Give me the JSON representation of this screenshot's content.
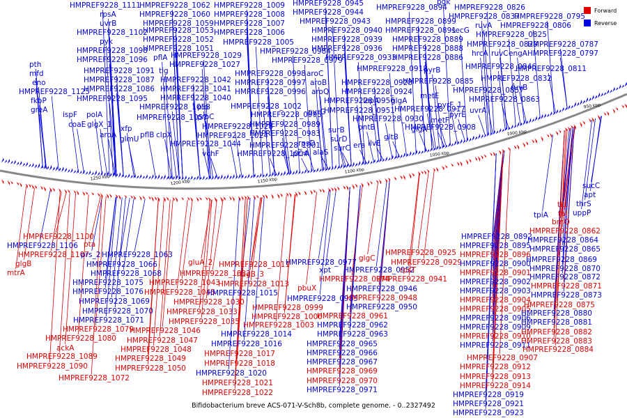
{
  "title": "Bifidobacterium breve ACS-071-V-Sch8b, complete genome. - 0..2327492",
  "legend": {
    "forward_label": "Forward",
    "reverse_label": "Reverse",
    "forward_color": "#e00000",
    "reverse_color": "#0000e0"
  },
  "backbone_ticks": [
    "1250 kbp",
    "1200 kbp",
    "1150 kbp",
    "1100 kbp",
    "1050 kbp",
    "1000 kbp",
    "950 kbp"
  ],
  "top_labels": [
    [
      "HMPREF9228_1111",
      100,
      11
    ],
    [
      "HMPREF9228_1062",
      200,
      11
    ],
    [
      "HMPREF9228_1009",
      307,
      11
    ],
    [
      "HMPREF9228_0945",
      420,
      8
    ],
    [
      "HMPREF9228_0894",
      540,
      14
    ],
    [
      "pgk",
      627,
      6
    ],
    [
      "HMPREF9228_0826",
      652,
      14
    ],
    [
      "rpsA",
      143,
      24
    ],
    [
      "HMPREF9228_1060",
      200,
      24
    ],
    [
      "HMPREF9228_1008",
      307,
      24
    ],
    [
      "HMPREF9228_0944",
      420,
      21
    ],
    [
      "HMPREF9228_0837",
      644,
      27
    ],
    [
      "HMPREF9228_0795",
      738,
      27
    ],
    [
      "uvrB",
      143,
      37
    ],
    [
      "HMPREF9228_1059",
      205,
      37
    ],
    [
      "HMPREF9228_1007",
      307,
      37
    ],
    [
      "HMPREF9228_0943",
      430,
      34
    ],
    [
      "HMPREF9228_0899",
      553,
      34
    ],
    [
      "ruvA",
      682,
      40
    ],
    [
      "HMPREF9228_0806",
      718,
      40
    ],
    [
      "HMPREF9228_1102",
      110,
      50
    ],
    [
      "HMPREF9228_1053",
      205,
      47
    ],
    [
      "HMPREF9228_1006",
      307,
      50
    ],
    [
      "HMPREF9228_0940",
      447,
      47
    ],
    [
      "HMPREF9228_0891",
      553,
      47
    ],
    [
      "secG",
      648,
      47
    ],
    [
      "HMPREF9228_0825",
      683,
      53
    ],
    [
      "pyk",
      143,
      63
    ],
    [
      "HMPREF9228_1052",
      205,
      60
    ],
    [
      "HMPREF9228_1005",
      320,
      64
    ],
    [
      "HMPREF9228_0939",
      447,
      60
    ],
    [
      "HMPREF9228_0889",
      563,
      60
    ],
    [
      "HMPREF9228_0829",
      670,
      67
    ],
    [
      "HMPREF9228_0787",
      757,
      67
    ],
    [
      "HMPREF9228_1098",
      110,
      76
    ],
    [
      "HMPREF9228_1051",
      205,
      73
    ],
    [
      "HMPREF9228_0984",
      373,
      77
    ],
    [
      "HMPREF9228_0936",
      447,
      73
    ],
    [
      "HMPREF9228_0888",
      563,
      73
    ],
    [
      "hrcA",
      677,
      80
    ],
    [
      "ruvC",
      705,
      80
    ],
    [
      "engA",
      730,
      80
    ],
    [
      "HMPREF9228_0797",
      757,
      80
    ],
    [
      "HMPREF9228_1096",
      110,
      89
    ],
    [
      "pflA",
      220,
      86
    ],
    [
      "HMPREF9228_1029",
      245,
      83
    ],
    [
      "HMPREF9228_0979",
      390,
      90
    ],
    [
      "HMPREF9228_0933",
      467,
      86
    ],
    [
      "HMPREF9228_0886",
      563,
      86
    ],
    [
      "pth",
      42,
      96
    ],
    [
      "HMPREF9228_1027",
      243,
      96
    ],
    [
      "HMPREF9228_0918",
      512,
      102
    ],
    [
      "HMPREF9228_0846",
      668,
      99
    ],
    [
      "HMPREF9228_0811",
      740,
      102
    ],
    [
      "mfd",
      42,
      109
    ],
    [
      "HMPREF9228_1091",
      120,
      105
    ],
    [
      "tig",
      228,
      105
    ],
    [
      "HMPREF9228_0998",
      337,
      109
    ],
    [
      "aroC",
      440,
      109
    ],
    [
      "pyrB",
      608,
      104
    ],
    [
      "HMPREF9228_0832",
      690,
      116
    ],
    [
      "eno",
      46,
      122
    ],
    [
      "HMPREF9228_1087",
      120,
      118
    ],
    [
      "HMPREF9228_1042",
      230,
      118
    ],
    [
      "HMPREF9228_0997",
      337,
      122
    ],
    [
      "aroB",
      445,
      122
    ],
    [
      "HMPREF9228_0928",
      490,
      122
    ],
    [
      "HMPREF9228_0885",
      578,
      120
    ],
    [
      "HMPREF9228_1125",
      27,
      135
    ],
    [
      "HMPREF9228_1086",
      120,
      131
    ],
    [
      "HMPREF9228_1041",
      230,
      131
    ],
    [
      "HMPREF9228_0996",
      337,
      135
    ],
    [
      "aroQ",
      447,
      135
    ],
    [
      "HMPREF9228_0924",
      490,
      135
    ],
    [
      "HMPREF9228_0857",
      650,
      133
    ],
    [
      "ruvB",
      733,
      129
    ],
    [
      "fkbP",
      44,
      148
    ],
    [
      "HMPREF9228_1095",
      110,
      145
    ],
    [
      "HMPREF9228_1040",
      230,
      144
    ],
    [
      "HMPREF9228_0956",
      465,
      148
    ],
    [
      "lepA",
      521,
      148
    ],
    [
      "glgA",
      561,
      148
    ],
    [
      "metE",
      603,
      141
    ],
    [
      "HMPREF9228_0863",
      673,
      146
    ],
    [
      "greA",
      44,
      161
    ],
    [
      "HMPREF9228_1058",
      200,
      157
    ],
    [
      "pip",
      283,
      157
    ],
    [
      "HMPREF9228_1002",
      331,
      156
    ],
    [
      "pyrF_1",
      628,
      154
    ],
    [
      "ispF",
      90,
      168
    ],
    [
      "polA",
      124,
      168
    ],
    [
      "HMPREF9228_0995",
      360,
      168
    ],
    [
      "pyrG",
      442,
      164
    ],
    [
      "HMPREF9228_0951",
      465,
      162
    ],
    [
      "HMPREF9228_0917",
      566,
      160
    ],
    [
      "uvrA",
      674,
      162
    ],
    [
      "coaE",
      98,
      182
    ],
    [
      "glgX_1",
      125,
      182
    ],
    [
      "HMPREF9228_1057",
      196,
      172
    ],
    [
      "proC",
      283,
      171
    ],
    [
      "HMPREF9228_0989",
      358,
      182
    ],
    [
      "HMPREF9228_0930",
      506,
      174
    ],
    [
      "pyrE",
      645,
      168
    ],
    [
      "xfp",
      173,
      188
    ],
    [
      "HMPREF9228_1028",
      290,
      185
    ],
    [
      "HMPREF9228_0983",
      358,
      195
    ],
    [
      "surB",
      471,
      190
    ],
    [
      "pntB",
      514,
      186
    ],
    [
      "metF",
      618,
      176
    ],
    [
      "aroA",
      143,
      197
    ],
    [
      "pflB",
      201,
      197
    ],
    [
      "clpX",
      224,
      197
    ],
    [
      "HMPREF9228_1024",
      283,
      198
    ],
    [
      "rpsD",
      428,
      209
    ],
    [
      "surD",
      474,
      203
    ],
    [
      "ilvE",
      528,
      209
    ],
    [
      "glgA",
      590,
      189
    ],
    [
      "HMPREF9228_0908",
      581,
      186
    ],
    [
      "glmU",
      172,
      203
    ],
    [
      "HMPREF9228_1044",
      244,
      210
    ],
    [
      "HMPREF9228_1001",
      358,
      212
    ],
    [
      "surC",
      479,
      216
    ],
    [
      "era",
      507,
      212
    ],
    [
      "gltB",
      551,
      200
    ],
    [
      "vchF",
      290,
      224
    ],
    [
      "HMPREF9228_1004",
      340,
      224
    ],
    [
      "pcrA",
      420,
      224
    ],
    [
      "alaS",
      449,
      222
    ]
  ],
  "bottom_labels": [
    [
      "HMPREF9228_1100",
      33,
      343,
      "f"
    ],
    [
      "HMPREF9228_1106",
      10,
      356,
      "r"
    ],
    [
      "pta",
      120,
      354,
      "f"
    ],
    [
      "HMPREF9228_1063",
      146,
      369,
      "r"
    ],
    [
      "HMPREF9228_1107",
      26,
      369,
      "f"
    ],
    [
      "prs_2",
      116,
      369,
      "r"
    ],
    [
      "glgB",
      22,
      382,
      "f"
    ],
    [
      "HMPREF9228_1066",
      124,
      383,
      "r"
    ],
    [
      "mtrA",
      10,
      395,
      "f"
    ],
    [
      "HMPREF9228_1068",
      130,
      396,
      "r"
    ],
    [
      "gluA_2",
      270,
      380,
      "f"
    ],
    [
      "HMPREF9228_1011",
      314,
      383,
      "f"
    ],
    [
      "HMPREF9228_1032",
      258,
      396,
      "f"
    ],
    [
      "nagB_3",
      340,
      397,
      "f"
    ],
    [
      "HMPREF9228_1075",
      104,
      409,
      "r"
    ],
    [
      "HMPREF9228_1043",
      214,
      409,
      "f"
    ],
    [
      "HMPREF9228_1013",
      313,
      411,
      "f"
    ],
    [
      "HMPREF9228_1076",
      104,
      422,
      "r"
    ],
    [
      "HMPREF9228_1045",
      207,
      423,
      "f"
    ],
    [
      "HMPREF9228_1015",
      297,
      424,
      "r"
    ],
    [
      "HMPREF9228_1069",
      113,
      436,
      "r"
    ],
    [
      "HMPREF9228_1030",
      249,
      437,
      "f"
    ],
    [
      "HMPREF9228_0999",
      362,
      445,
      "f"
    ],
    [
      "HMPREF9228_1070",
      118,
      450,
      "r"
    ],
    [
      "HMPREF9228_1033",
      239,
      451,
      "f"
    ],
    [
      "HMPREF9228_1000",
      361,
      458,
      "f"
    ],
    [
      "HMPREF9228_1071",
      105,
      463,
      "r"
    ],
    [
      "HMPREF9228_1035",
      242,
      465,
      "f"
    ],
    [
      "HMPREF9228_1003",
      349,
      470,
      "f"
    ],
    [
      "HMPREF9228_1079",
      90,
      476,
      "f"
    ],
    [
      "HMPREF9228_1014",
      317,
      483,
      "r"
    ],
    [
      "HMPREF9228_1080",
      65,
      489,
      "f"
    ],
    [
      "HMPREF9228_1046",
      186,
      478,
      "f"
    ],
    [
      "HMPREF9228_1047",
      182,
      492,
      "f"
    ],
    [
      "HMPREF9228_1016",
      303,
      497,
      "r"
    ],
    [
      "ackA",
      81,
      503,
      "f"
    ],
    [
      "HMPREF9228_1048",
      173,
      505,
      "f"
    ],
    [
      "HMPREF9228_1017",
      293,
      511,
      "f"
    ],
    [
      "HMPREF9228_1089",
      38,
      515,
      "f"
    ],
    [
      "HMPREF9228_1049",
      165,
      518,
      "f"
    ],
    [
      "HMPREF9228_1018",
      293,
      525,
      "f"
    ],
    [
      "HMPREF9228_1090",
      24,
      529,
      "f"
    ],
    [
      "HMPREF9228_1050",
      165,
      532,
      "f"
    ],
    [
      "HMPREF9228_1020",
      281,
      539,
      "r"
    ],
    [
      "HMPREF9228_1072",
      84,
      546,
      "f"
    ],
    [
      "HMPREF9228_1021",
      290,
      553,
      "f"
    ],
    [
      "HMPREF9228_1022",
      290,
      567,
      "f"
    ],
    [
      "HMPREF9228_0977",
      410,
      380,
      "r"
    ],
    [
      "glgC",
      515,
      374,
      "f"
    ],
    [
      "xpt",
      458,
      391,
      "r"
    ],
    [
      "HMPREF9228_0952",
      493,
      391,
      "r"
    ],
    [
      "rpsT",
      574,
      391,
      "f"
    ],
    [
      "HMPREF9228_0974",
      458,
      404,
      "f"
    ],
    [
      "HMPREF9228_0941",
      540,
      404,
      "f"
    ],
    [
      "pbuX",
      427,
      417,
      "f"
    ],
    [
      "HMPREF9228_0946",
      497,
      418,
      "r"
    ],
    [
      "HMPREF9228_0985",
      412,
      432,
      "r"
    ],
    [
      "HMPREF9228_0948",
      497,
      431,
      "f"
    ],
    [
      "HMPREF9228_0950",
      497,
      444,
      "r"
    ],
    [
      "HMPREF9228_0961",
      455,
      457,
      "f"
    ],
    [
      "HMPREF9228_0962",
      455,
      470,
      "r"
    ],
    [
      "HMPREF9228_0963",
      455,
      483,
      "r"
    ],
    [
      "HMPREF9228_0965",
      440,
      497,
      "r"
    ],
    [
      "HMPREF9228_0966",
      440,
      510,
      "r"
    ],
    [
      "HMPREF9228_0967",
      440,
      523,
      "r"
    ],
    [
      "HMPREF9228_0969",
      440,
      536,
      "f"
    ],
    [
      "HMPREF9228_0970",
      440,
      550,
      "f"
    ],
    [
      "HMPREF9228_0971",
      440,
      563,
      "r"
    ],
    [
      "HMPREF9228_0925",
      553,
      366,
      "f"
    ],
    [
      "HMPREF9228_0929",
      561,
      380,
      "f"
    ],
    [
      "HMPREF9228_0892",
      662,
      343,
      "r"
    ],
    [
      "HMPREF9228_0895",
      660,
      356,
      "r"
    ],
    [
      "HMPREF9228_0896",
      660,
      369,
      "f"
    ],
    [
      "HMPREF9228_0900",
      660,
      382,
      "r"
    ],
    [
      "HMPREF9228_0901",
      660,
      395,
      "f"
    ],
    [
      "HMPREF9228_0902",
      660,
      408,
      "r"
    ],
    [
      "HMPREF9228_0903",
      660,
      421,
      "r"
    ],
    [
      "HMPREF9228_0904",
      660,
      434,
      "f"
    ],
    [
      "HMPREF9228_0905",
      660,
      447,
      "f"
    ],
    [
      "HMPREF9228_0906",
      660,
      460,
      "r"
    ],
    [
      "HMPREF9228_0909",
      660,
      473,
      "r"
    ],
    [
      "HMPREF9228_0910",
      660,
      486,
      "f"
    ],
    [
      "HMPREF9228_0911",
      660,
      499,
      "r"
    ],
    [
      "HMPREF9228_0907",
      670,
      517,
      "f"
    ],
    [
      "HMPREF9228_0912",
      660,
      530,
      "f"
    ],
    [
      "HMPREF9228_0913",
      660,
      544,
      "f"
    ],
    [
      "HMPREF9228_0914",
      660,
      557,
      "f"
    ],
    [
      "HMPREF9228_0919",
      650,
      570,
      "r"
    ],
    [
      "HMPREF9228_0921",
      650,
      583,
      "r"
    ],
    [
      "HMPREF9228_0923",
      650,
      596,
      "r"
    ],
    [
      "sucC",
      836,
      270,
      "r"
    ],
    [
      "apt",
      838,
      283,
      "r"
    ],
    [
      "thrS",
      827,
      296,
      "r"
    ],
    [
      "uppP",
      822,
      309,
      "r"
    ],
    [
      "tkt",
      800,
      297,
      "f"
    ],
    [
      "tal",
      801,
      310,
      "f"
    ],
    [
      "brnQ",
      792,
      322,
      "f"
    ],
    [
      "tpiA",
      766,
      312,
      "r"
    ],
    [
      "HMPREF9228_0862",
      760,
      335,
      "f"
    ],
    [
      "HMPREF9228_0864",
      757,
      348,
      "r"
    ],
    [
      "HMPREF9228_0865",
      760,
      361,
      "r"
    ],
    [
      "HMPREF9228_0869",
      755,
      376,
      "r"
    ],
    [
      "HMPREF9228_0870",
      760,
      389,
      "r"
    ],
    [
      "HMPREF9228_0872",
      760,
      401,
      "r"
    ],
    [
      "HMPREF9228_0871",
      762,
      414,
      "f"
    ],
    [
      "HMPREF9228_0873",
      762,
      427,
      "r"
    ],
    [
      "HMPREF9228_0875",
      752,
      441,
      "f"
    ],
    [
      "HMPREF9228_0880",
      748,
      453,
      "r"
    ],
    [
      "HMPREF9228_0881",
      748,
      466,
      "r"
    ],
    [
      "HMPREF9228_0882",
      748,
      480,
      "f"
    ],
    [
      "HMPREF9228_0883",
      748,
      493,
      "f"
    ],
    [
      "HMPREF9228_0884",
      750,
      505,
      "f"
    ]
  ]
}
